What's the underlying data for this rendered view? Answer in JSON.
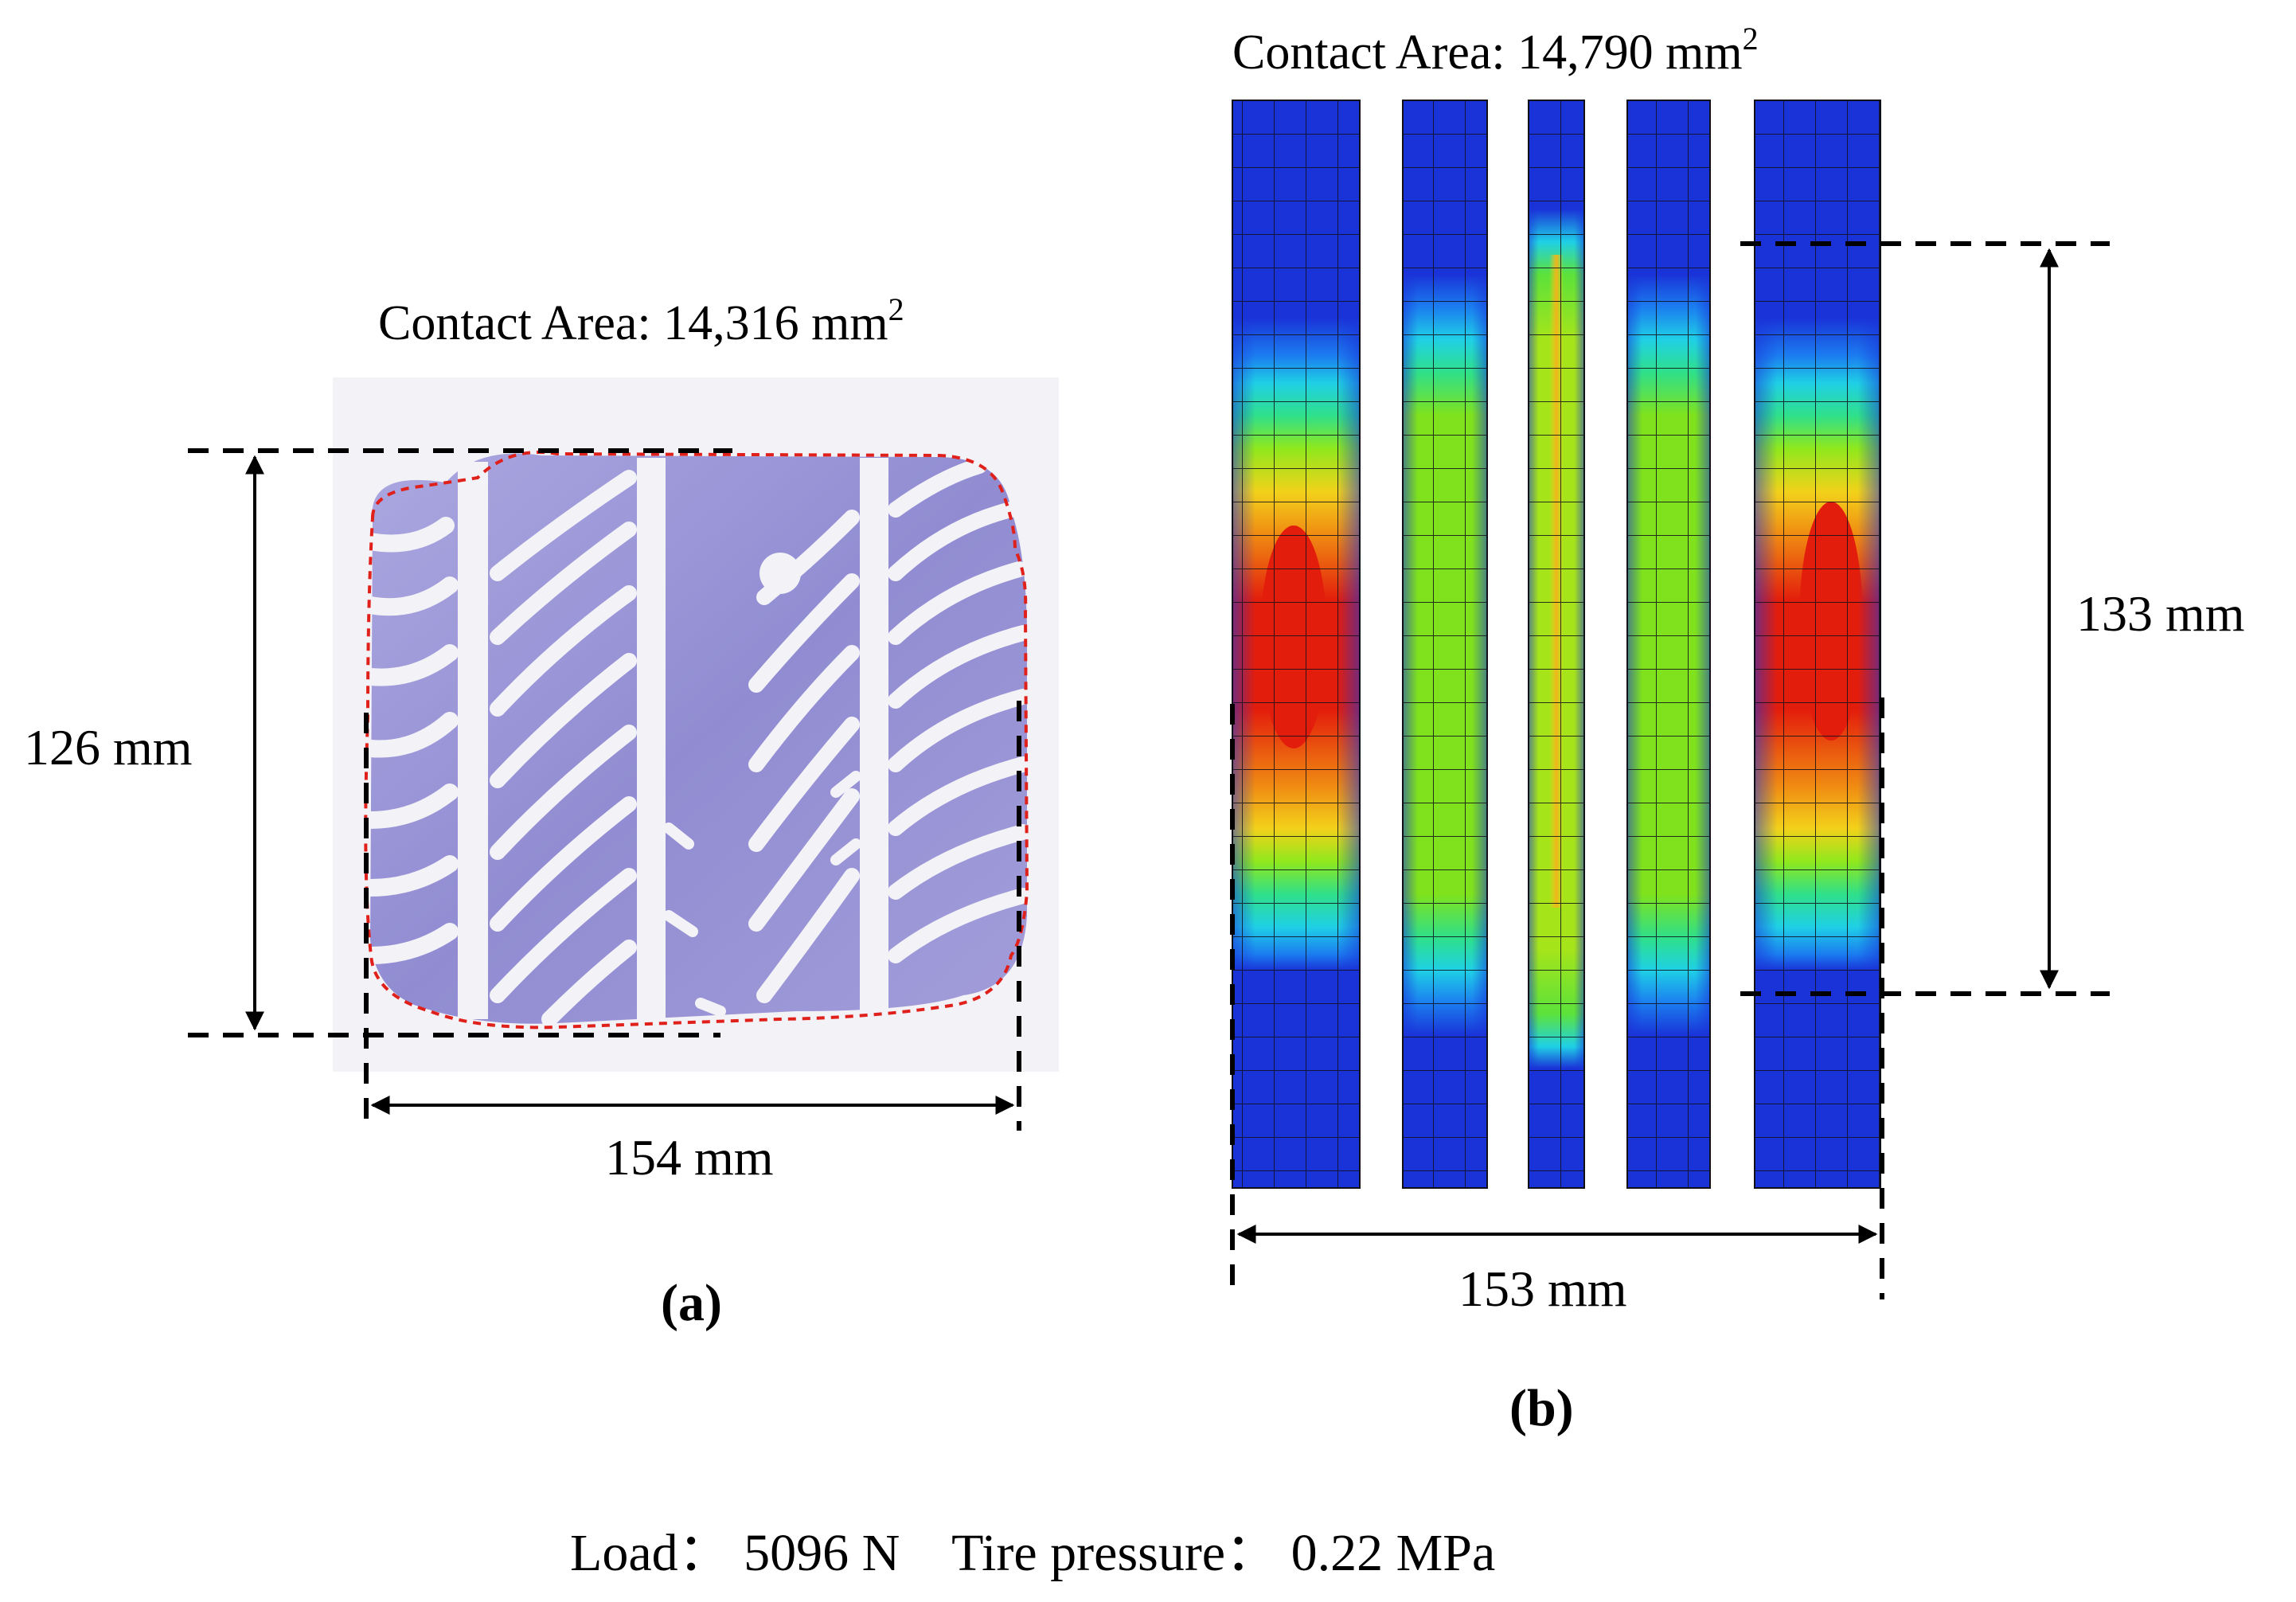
{
  "panel_a": {
    "contact_area_label": "Contact Area: 14,316 mm",
    "contact_area_superscript": "2",
    "height_label": "126 mm",
    "width_label": "154 mm",
    "caption": "(a)"
  },
  "panel_b": {
    "contact_area_label": "Contact Area: 14,790 mm",
    "contact_area_superscript": "2",
    "height_label": "133 mm",
    "width_label": "153 mm",
    "caption": "(b)"
  },
  "conditions": {
    "text": "Load： 5096 N    Tire pressure： 0.22 MPa"
  },
  "colors": {
    "footprint_ink": "#8a85cf",
    "outline": "#e0201a",
    "fe_blue": "#1d3fd6",
    "fe_red": "#e00000"
  }
}
